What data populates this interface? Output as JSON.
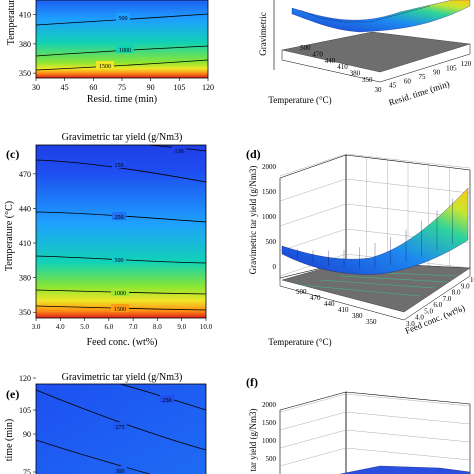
{
  "figure": {
    "panel_labels": [
      "(c)",
      "(d)",
      "(e)",
      "(f)"
    ]
  },
  "palette": {
    "c_low": "#1e4cf0",
    "c_mid1": "#1ea0ff",
    "c_mid2": "#12d2b4",
    "c_mid3": "#8ce632",
    "c_high1": "#f0e628",
    "c_high2": "#ff8c14",
    "c_max": "#dc1e1e",
    "floor": "#6e6e6e",
    "surface_low": "#2a3fd0",
    "surface_high": "#ffd400"
  },
  "chart_data": [
    {
      "id": "a",
      "type": "contour",
      "title": "",
      "xlabel": "Resid. time (min)",
      "ylabel": "Temperature",
      "x_ticks": [
        "30",
        "45",
        "60",
        "75",
        "90",
        "105",
        "120"
      ],
      "y_ticks": [
        "350",
        "380",
        "410"
      ],
      "xlim": [
        30,
        120
      ],
      "ylim": [
        345,
        425
      ],
      "contour_levels": [
        "500",
        "1000",
        "1500"
      ]
    },
    {
      "id": "b",
      "type": "surface3d",
      "title": "",
      "zlabel": "Gravimetric",
      "xlabel": "Resid. time (min)",
      "ylabel": "Temperature (°C)",
      "temperature_ticks": [
        "500",
        "470",
        "440",
        "410",
        "380",
        "350"
      ],
      "time_ticks": [
        "30",
        "45",
        "60",
        "75",
        "90",
        "105",
        "120"
      ]
    },
    {
      "id": "c",
      "type": "contour",
      "title": "Gravimetric tar yield (g/Nm3)",
      "xlabel": "Feed conc. (wt%)",
      "ylabel": "Temperature (°C)",
      "x_ticks": [
        "3.0",
        "4.0",
        "5.0",
        "6.0",
        "7.0",
        "8.0",
        "9.0",
        "10.0"
      ],
      "y_ticks": [
        "350",
        "380",
        "410",
        "440",
        "470"
      ],
      "xlim": [
        3,
        10
      ],
      "ylim": [
        345,
        495
      ],
      "contour_levels": [
        "150",
        "250",
        "500",
        "1000",
        "1500",
        "130"
      ]
    },
    {
      "id": "d",
      "type": "surface3d",
      "title": "",
      "zlabel": "Gravimetric tar yield (g/Nm3)",
      "z_ticks": [
        "0",
        "500",
        "1000",
        "1500",
        "2000"
      ],
      "xlabel": "Feed conc. (wt%)",
      "ylabel": "Temperature (°C)",
      "temperature_ticks": [
        "500",
        "470",
        "440",
        "410",
        "380",
        "350"
      ],
      "feed_ticks": [
        "3.0",
        "4.0",
        "5.0",
        "6.0",
        "7.0",
        "8.0",
        "9.0",
        "10.0"
      ]
    },
    {
      "id": "e",
      "type": "contour",
      "title": "Gravimetric tar yield (g/Nm3)",
      "xlabel": "",
      "ylabel": "time (min)",
      "y_ticks": [
        "75",
        "90",
        "105",
        "120"
      ],
      "contour_levels": [
        "250",
        "275",
        "300"
      ]
    },
    {
      "id": "f",
      "type": "surface3d",
      "title": "",
      "zlabel": "tar yield (g/Nm3)",
      "z_ticks": [
        "500",
        "1000",
        "1500",
        "2000"
      ]
    }
  ]
}
